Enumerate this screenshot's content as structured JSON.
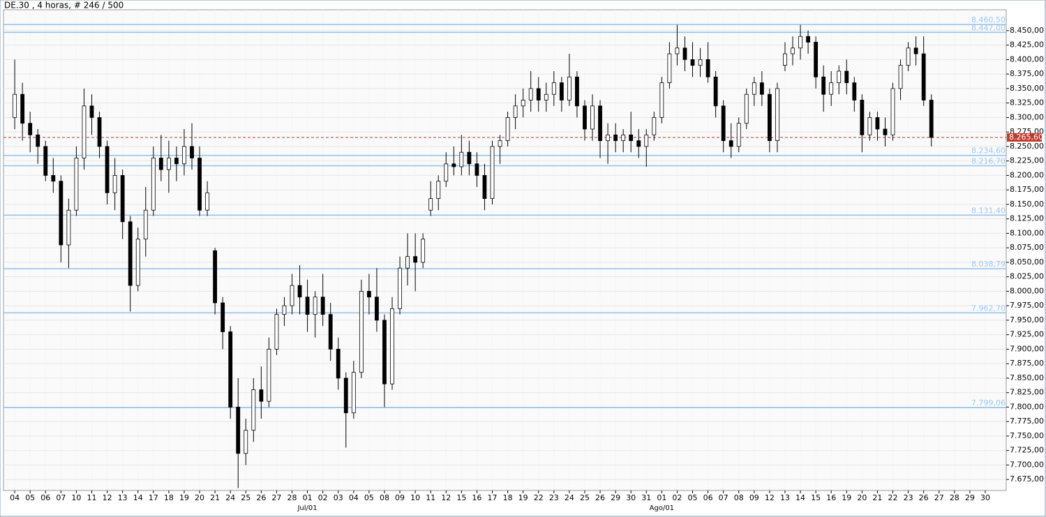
{
  "chart_data": {
    "type": "candlestick",
    "title": "DE.30 , 4 horas, # 246 / 500",
    "ylim": [
      7656,
      8486
    ],
    "xlim": [
      -0.73,
      64.36
    ],
    "yticks": [
      {
        "value": 7675,
        "label": "7.675,00"
      },
      {
        "value": 7700,
        "label": "7.700,00"
      },
      {
        "value": 7725,
        "label": "7.725,00"
      },
      {
        "value": 7750,
        "label": "7.750,00"
      },
      {
        "value": 7775,
        "label": "7.775,00"
      },
      {
        "value": 7800,
        "label": "7.800,00"
      },
      {
        "value": 7825,
        "label": "7.825,00"
      },
      {
        "value": 7850,
        "label": "7.850,00"
      },
      {
        "value": 7875,
        "label": "7.875,00"
      },
      {
        "value": 7900,
        "label": "7.900,00"
      },
      {
        "value": 7925,
        "label": "7.925,00"
      },
      {
        "value": 7950,
        "label": "7.950,00"
      },
      {
        "value": 7975,
        "label": "7.975,00"
      },
      {
        "value": 8000,
        "label": "8.000,00"
      },
      {
        "value": 8025,
        "label": "8.025,00"
      },
      {
        "value": 8050,
        "label": "8.050,00"
      },
      {
        "value": 8075,
        "label": "8.075,00"
      },
      {
        "value": 8100,
        "label": "8.100,00"
      },
      {
        "value": 8125,
        "label": "8.125,00"
      },
      {
        "value": 8150,
        "label": "8.150,00"
      },
      {
        "value": 8175,
        "label": "8.175,00"
      },
      {
        "value": 8200,
        "label": "8.200,00"
      },
      {
        "value": 8225,
        "label": "8.225,00"
      },
      {
        "value": 8250,
        "label": "8.250,00"
      },
      {
        "value": 8275,
        "label": "8.275,00"
      },
      {
        "value": 8300,
        "label": "8.300,00"
      },
      {
        "value": 8325,
        "label": "8.325,00"
      },
      {
        "value": 8350,
        "label": "8.350,00"
      },
      {
        "value": 8375,
        "label": "8.375,00"
      },
      {
        "value": 8400,
        "label": "8.400,00"
      },
      {
        "value": 8425,
        "label": "8.425,00"
      },
      {
        "value": 8450,
        "label": "8.450,00"
      }
    ],
    "xticks": [
      {
        "value": 0,
        "label": "04"
      },
      {
        "value": 1,
        "label": "05"
      },
      {
        "value": 2,
        "label": "06"
      },
      {
        "value": 3,
        "label": "07"
      },
      {
        "value": 4,
        "label": "10"
      },
      {
        "value": 5,
        "label": "11"
      },
      {
        "value": 6,
        "label": "12"
      },
      {
        "value": 7,
        "label": "13"
      },
      {
        "value": 8,
        "label": "14"
      },
      {
        "value": 9,
        "label": "17"
      },
      {
        "value": 10,
        "label": "18"
      },
      {
        "value": 11,
        "label": "19"
      },
      {
        "value": 12,
        "label": "20"
      },
      {
        "value": 13,
        "label": "21"
      },
      {
        "value": 14,
        "label": "24"
      },
      {
        "value": 15,
        "label": "25"
      },
      {
        "value": 16,
        "label": "26"
      },
      {
        "value": 17,
        "label": "27"
      },
      {
        "value": 18,
        "label": "28"
      },
      {
        "value": 19,
        "label": "01"
      },
      {
        "value": 20,
        "label": "02"
      },
      {
        "value": 21,
        "label": "03"
      },
      {
        "value": 22,
        "label": "04"
      },
      {
        "value": 23,
        "label": "05"
      },
      {
        "value": 24,
        "label": "08"
      },
      {
        "value": 25,
        "label": "09"
      },
      {
        "value": 26,
        "label": "10"
      },
      {
        "value": 27,
        "label": "11"
      },
      {
        "value": 28,
        "label": "12"
      },
      {
        "value": 29,
        "label": "15"
      },
      {
        "value": 30,
        "label": "16"
      },
      {
        "value": 31,
        "label": "17"
      },
      {
        "value": 32,
        "label": "18"
      },
      {
        "value": 33,
        "label": "19"
      },
      {
        "value": 34,
        "label": "22"
      },
      {
        "value": 35,
        "label": "23"
      },
      {
        "value": 36,
        "label": "24"
      },
      {
        "value": 37,
        "label": "25"
      },
      {
        "value": 38,
        "label": "26"
      },
      {
        "value": 39,
        "label": "29"
      },
      {
        "value": 40,
        "label": "30"
      },
      {
        "value": 41,
        "label": "31"
      },
      {
        "value": 42,
        "label": "01"
      },
      {
        "value": 43,
        "label": "02"
      },
      {
        "value": 44,
        "label": "05"
      },
      {
        "value": 45,
        "label": "06"
      },
      {
        "value": 46,
        "label": "07"
      },
      {
        "value": 47,
        "label": "08"
      },
      {
        "value": 48,
        "label": "09"
      },
      {
        "value": 49,
        "label": "12"
      },
      {
        "value": 50,
        "label": "13"
      },
      {
        "value": 51,
        "label": "14"
      },
      {
        "value": 52,
        "label": "15"
      },
      {
        "value": 53,
        "label": "16"
      },
      {
        "value": 54,
        "label": "19"
      },
      {
        "value": 55,
        "label": "20"
      },
      {
        "value": 56,
        "label": "21"
      },
      {
        "value": 57,
        "label": "22"
      },
      {
        "value": 58,
        "label": "23"
      },
      {
        "value": 59,
        "label": "26"
      },
      {
        "value": 60,
        "label": "27"
      },
      {
        "value": 61,
        "label": "28"
      },
      {
        "value": 62,
        "label": "29"
      },
      {
        "value": 63,
        "label": "30"
      }
    ],
    "month_labels": [
      {
        "value": 19,
        "label": "Jul/01"
      },
      {
        "value": 42,
        "label": "Ago/01"
      }
    ],
    "levels": [
      {
        "value": 8460.5,
        "label": "8.460,50"
      },
      {
        "value": 8447,
        "label": "8.447,00"
      },
      {
        "value": 8234.6,
        "label": "8.234,60"
      },
      {
        "value": 8216.7,
        "label": "8.216,70"
      },
      {
        "value": 8131.4,
        "label": "8.131,40"
      },
      {
        "value": 8038.79,
        "label": "8.038,79"
      },
      {
        "value": 7962.7,
        "label": "7.962,70"
      },
      {
        "value": 7799.06,
        "label": "7.799,06"
      }
    ],
    "last_price": {
      "value": 8265.6,
      "label": "8.265,60"
    },
    "grid": true,
    "up_color": "#ffffff",
    "down_color": "#000000",
    "level_color": "#8ec1ef",
    "last_price_color": "#c0392b",
    "ohlc": [
      [
        8300,
        8400,
        8280,
        8340
      ],
      [
        8340,
        8360,
        8260,
        8290
      ],
      [
        8290,
        8310,
        8240,
        8270
      ],
      [
        8270,
        8280,
        8220,
        8250
      ],
      [
        8250,
        8260,
        8190,
        8200
      ],
      [
        8200,
        8230,
        8170,
        8190
      ],
      [
        8190,
        8200,
        8050,
        8080
      ],
      [
        8080,
        8160,
        8040,
        8140
      ],
      [
        8140,
        8250,
        8130,
        8230
      ],
      [
        8230,
        8350,
        8210,
        8320
      ],
      [
        8320,
        8340,
        8270,
        8300
      ],
      [
        8300,
        8310,
        8230,
        8250
      ],
      [
        8250,
        8260,
        8150,
        8170
      ],
      [
        8170,
        8230,
        8140,
        8200
      ],
      [
        8200,
        8210,
        8090,
        8120
      ],
      [
        8120,
        8130,
        7965,
        8010
      ],
      [
        8010,
        8110,
        8000,
        8090
      ],
      [
        8090,
        8180,
        8060,
        8140
      ],
      [
        8140,
        8250,
        8130,
        8230
      ],
      [
        8230,
        8270,
        8190,
        8210
      ],
      [
        8210,
        8260,
        8170,
        8230
      ],
      [
        8230,
        8250,
        8190,
        8220
      ],
      [
        8220,
        8280,
        8200,
        8250
      ],
      [
        8250,
        8290,
        8210,
        8230
      ],
      [
        8230,
        8250,
        8130,
        8140
      ],
      [
        8140,
        8190,
        8130,
        8170
      ],
      [
        8070,
        8075,
        7960,
        7980
      ],
      [
        7980,
        7990,
        7900,
        7930
      ],
      [
        7930,
        7940,
        7780,
        7800
      ],
      [
        7800,
        7850,
        7660,
        7720
      ],
      [
        7720,
        7780,
        7700,
        7760
      ],
      [
        7760,
        7850,
        7740,
        7830
      ],
      [
        7830,
        7870,
        7780,
        7810
      ],
      [
        7810,
        7920,
        7800,
        7900
      ],
      [
        7900,
        7970,
        7890,
        7960
      ],
      [
        7960,
        7990,
        7940,
        7975
      ],
      [
        7975,
        8030,
        7960,
        8010
      ],
      [
        8010,
        8045,
        7960,
        7990
      ],
      [
        7990,
        8020,
        7930,
        7960
      ],
      [
        7960,
        8000,
        7920,
        7990
      ],
      [
        7990,
        8030,
        7940,
        7960
      ],
      [
        7960,
        7980,
        7880,
        7900
      ],
      [
        7900,
        7920,
        7830,
        7850
      ],
      [
        7850,
        7860,
        7730,
        7790
      ],
      [
        7790,
        7880,
        7780,
        7860
      ],
      [
        7860,
        8020,
        7850,
        8000
      ],
      [
        8000,
        8030,
        7960,
        7990
      ],
      [
        7990,
        8040,
        7930,
        7950
      ],
      [
        7950,
        7960,
        7800,
        7840
      ],
      [
        7840,
        7990,
        7830,
        7970
      ],
      [
        7970,
        8060,
        7960,
        8040
      ],
      [
        8040,
        8100,
        8010,
        8060
      ],
      [
        8060,
        8100,
        8000,
        8050
      ],
      [
        8050,
        8100,
        8040,
        8090
      ],
      [
        8140,
        8190,
        8130,
        8160
      ],
      [
        8160,
        8200,
        8140,
        8190
      ],
      [
        8190,
        8240,
        8180,
        8220
      ],
      [
        8220,
        8250,
        8200,
        8215
      ],
      [
        8215,
        8270,
        8200,
        8240
      ],
      [
        8240,
        8260,
        8200,
        8220
      ],
      [
        8220,
        8240,
        8180,
        8200
      ],
      [
        8200,
        8220,
        8140,
        8160
      ],
      [
        8160,
        8260,
        8150,
        8250
      ],
      [
        8250,
        8270,
        8220,
        8260
      ],
      [
        8260,
        8310,
        8250,
        8300
      ],
      [
        8300,
        8340,
        8280,
        8320
      ],
      [
        8320,
        8350,
        8300,
        8330
      ],
      [
        8330,
        8380,
        8310,
        8350
      ],
      [
        8350,
        8370,
        8310,
        8330
      ],
      [
        8330,
        8360,
        8310,
        8340
      ],
      [
        8340,
        8380,
        8320,
        8360
      ],
      [
        8360,
        8370,
        8310,
        8330
      ],
      [
        8330,
        8410,
        8320,
        8370
      ],
      [
        8370,
        8380,
        8300,
        8320
      ],
      [
        8320,
        8330,
        8260,
        8280
      ],
      [
        8280,
        8340,
        8260,
        8320
      ],
      [
        8320,
        8330,
        8230,
        8260
      ],
      [
        8260,
        8290,
        8220,
        8270
      ],
      [
        8270,
        8290,
        8240,
        8260
      ],
      [
        8260,
        8280,
        8240,
        8270
      ],
      [
        8270,
        8310,
        8240,
        8260
      ],
      [
        8260,
        8280,
        8230,
        8250
      ],
      [
        8250,
        8280,
        8215,
        8270
      ],
      [
        8270,
        8310,
        8260,
        8300
      ],
      [
        8300,
        8370,
        8290,
        8360
      ],
      [
        8360,
        8430,
        8350,
        8410
      ],
      [
        8410,
        8460,
        8390,
        8420
      ],
      [
        8420,
        8440,
        8380,
        8400
      ],
      [
        8400,
        8430,
        8370,
        8390
      ],
      [
        8390,
        8420,
        8370,
        8400
      ],
      [
        8400,
        8430,
        8360,
        8370
      ],
      [
        8370,
        8380,
        8300,
        8320
      ],
      [
        8320,
        8330,
        8240,
        8260
      ],
      [
        8260,
        8290,
        8230,
        8250
      ],
      [
        8250,
        8300,
        8240,
        8290
      ],
      [
        8290,
        8350,
        8280,
        8340
      ],
      [
        8340,
        8370,
        8320,
        8360
      ],
      [
        8360,
        8380,
        8320,
        8340
      ],
      [
        8340,
        8350,
        8240,
        8260
      ],
      [
        8260,
        8360,
        8240,
        8350
      ],
      [
        8390,
        8430,
        8380,
        8410
      ],
      [
        8410,
        8440,
        8390,
        8420
      ],
      [
        8420,
        8460,
        8400,
        8440
      ],
      [
        8440,
        8450,
        8410,
        8430
      ],
      [
        8430,
        8440,
        8350,
        8370
      ],
      [
        8370,
        8390,
        8310,
        8340
      ],
      [
        8340,
        8380,
        8320,
        8360
      ],
      [
        8360,
        8390,
        8340,
        8380
      ],
      [
        8380,
        8400,
        8340,
        8360
      ],
      [
        8360,
        8370,
        8310,
        8330
      ],
      [
        8330,
        8340,
        8240,
        8270
      ],
      [
        8270,
        8310,
        8260,
        8300
      ],
      [
        8300,
        8310,
        8260,
        8280
      ],
      [
        8280,
        8300,
        8250,
        8270
      ],
      [
        8270,
        8360,
        8260,
        8350
      ],
      [
        8350,
        8400,
        8330,
        8390
      ],
      [
        8390,
        8430,
        8380,
        8420
      ],
      [
        8420,
        8440,
        8390,
        8410
      ],
      [
        8410,
        8440,
        8320,
        8330
      ],
      [
        8330,
        8340,
        8250,
        8265.6
      ]
    ]
  }
}
